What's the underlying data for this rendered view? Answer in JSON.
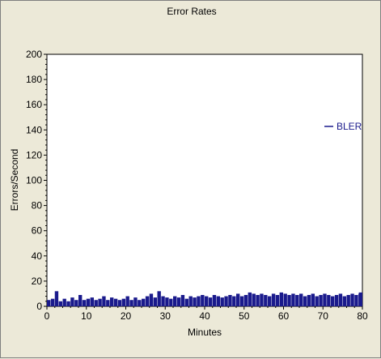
{
  "chart_data": {
    "type": "bar",
    "title": "Error Rates",
    "xlabel": "Minutes",
    "ylabel": "Errors/Second",
    "xlim": [
      0,
      80
    ],
    "ylim": [
      0,
      200
    ],
    "xticks": [
      0,
      10,
      20,
      30,
      40,
      50,
      60,
      70,
      80
    ],
    "yticks": [
      0,
      20,
      40,
      60,
      80,
      100,
      120,
      140,
      160,
      180,
      200
    ],
    "grid": false,
    "legend_position": "right",
    "series": [
      {
        "name": "BLER",
        "color": "#1a1a8c",
        "x": [
          0,
          1,
          2,
          3,
          4,
          5,
          6,
          7,
          8,
          9,
          10,
          11,
          12,
          13,
          14,
          15,
          16,
          17,
          18,
          19,
          20,
          21,
          22,
          23,
          24,
          25,
          26,
          27,
          28,
          29,
          30,
          31,
          32,
          33,
          34,
          35,
          36,
          37,
          38,
          39,
          40,
          41,
          42,
          43,
          44,
          45,
          46,
          47,
          48,
          49,
          50,
          51,
          52,
          53,
          54,
          55,
          56,
          57,
          58,
          59,
          60,
          61,
          62,
          63,
          64,
          65,
          66,
          67,
          68,
          69,
          70,
          71,
          72,
          73,
          74,
          75,
          76,
          77,
          78,
          79,
          80
        ],
        "values": [
          5,
          6,
          12,
          4,
          6,
          4,
          7,
          5,
          9,
          5,
          6,
          7,
          5,
          6,
          8,
          5,
          7,
          6,
          5,
          6,
          8,
          5,
          7,
          5,
          6,
          8,
          10,
          7,
          12,
          8,
          7,
          6,
          8,
          7,
          9,
          6,
          8,
          7,
          8,
          9,
          8,
          7,
          9,
          8,
          7,
          8,
          9,
          8,
          10,
          8,
          9,
          11,
          10,
          9,
          10,
          9,
          8,
          10,
          9,
          11,
          10,
          9,
          10,
          9,
          10,
          8,
          9,
          10,
          8,
          9,
          10,
          9,
          8,
          9,
          10,
          8,
          9,
          10,
          9,
          10,
          11
        ]
      }
    ]
  }
}
